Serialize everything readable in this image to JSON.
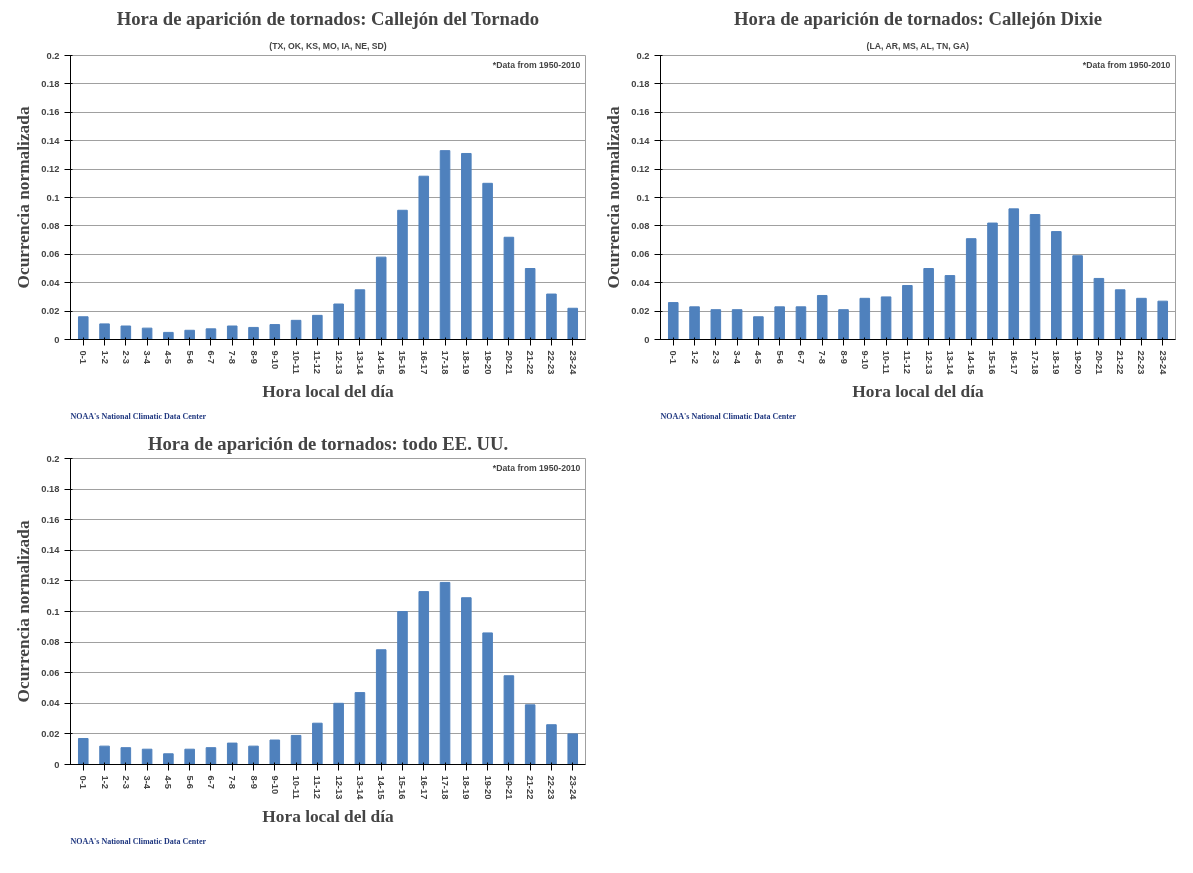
{
  "chart_data": [
    {
      "type": "bar",
      "title": "Hora de aparición de tornados: Callejón del Tornado",
      "subtitle": "(TX, OK, KS, MO, IA, NE, SD)",
      "xlabel": "Hora local del día",
      "ylabel": "Ocurrencia normalizada",
      "annotations": [
        "*Data from 1950-2010",
        "NOAA's National Climatic Data Center"
      ],
      "color": "#4f81bd",
      "grid": "y",
      "ylim": [
        0,
        0.2
      ],
      "yticks": [
        0,
        0.02,
        0.04,
        0.06,
        0.08,
        0.1,
        0.12,
        0.14,
        0.16,
        0.18,
        0.2
      ],
      "categories": [
        "0-1",
        "1-2",
        "2-3",
        "3-4",
        "4-5",
        "5-6",
        "6-7",
        "7-8",
        "8-9",
        "9-10",
        "10-11",
        "11-12",
        "12-13",
        "13-14",
        "14-15",
        "15-16",
        "16-17",
        "17-18",
        "18-19",
        "19-20",
        "20-21",
        "21-22",
        "22-23",
        "23-24"
      ],
      "values": [
        0.016,
        0.011,
        0.0095,
        0.008,
        0.005,
        0.0065,
        0.0075,
        0.0095,
        0.0085,
        0.0105,
        0.0135,
        0.017,
        0.025,
        0.035,
        0.058,
        0.091,
        0.115,
        0.133,
        0.131,
        0.11,
        0.072,
        0.05,
        0.032,
        0.022
      ]
    },
    {
      "type": "bar",
      "title": "Hora de aparición de tornados: Callejón Dixie",
      "subtitle": "(LA, AR, MS, AL, TN, GA)",
      "xlabel": "Hora local del día",
      "ylabel": "Ocurrencia normalizada",
      "annotations": [
        "*Data from 1950-2010",
        "NOAA's National Climatic Data Center"
      ],
      "color": "#4f81bd",
      "grid": "y",
      "ylim": [
        0,
        0.2
      ],
      "yticks": [
        0,
        0.02,
        0.04,
        0.06,
        0.08,
        0.1,
        0.12,
        0.14,
        0.16,
        0.18,
        0.2
      ],
      "categories": [
        "0-1",
        "1-2",
        "2-3",
        "3-4",
        "4-5",
        "5-6",
        "6-7",
        "7-8",
        "8-9",
        "9-10",
        "10-11",
        "11-12",
        "12-13",
        "13-14",
        "14-15",
        "15-16",
        "16-17",
        "17-18",
        "18-19",
        "19-20",
        "20-21",
        "21-22",
        "22-23",
        "23-24"
      ],
      "values": [
        0.026,
        0.023,
        0.021,
        0.021,
        0.016,
        0.023,
        0.023,
        0.031,
        0.021,
        0.029,
        0.03,
        0.038,
        0.05,
        0.045,
        0.071,
        0.082,
        0.092,
        0.088,
        0.076,
        0.059,
        0.043,
        0.035,
        0.029,
        0.027
      ]
    },
    {
      "type": "bar",
      "title": "Hora de aparición de tornados: todo EE. UU.",
      "xlabel": "Hora local del día",
      "ylabel": "Ocurrencia normalizada",
      "annotations": [
        "*Data from 1950-2010",
        "NOAA's National Climatic Data Center"
      ],
      "color": "#4f81bd",
      "grid": "y",
      "ylim": [
        0,
        0.2
      ],
      "yticks": [
        0,
        0.02,
        0.04,
        0.06,
        0.08,
        0.1,
        0.12,
        0.14,
        0.16,
        0.18,
        0.2
      ],
      "categories": [
        "0-1",
        "1-2",
        "2-3",
        "3-4",
        "4-5",
        "5-6",
        "6-7",
        "7-8",
        "8-9",
        "9-10",
        "10-11",
        "11-12",
        "12-13",
        "13-14",
        "14-15",
        "15-16",
        "16-17",
        "17-18",
        "18-19",
        "19-20",
        "20-21",
        "21-22",
        "22-23",
        "23-24"
      ],
      "values": [
        0.017,
        0.012,
        0.011,
        0.01,
        0.007,
        0.01,
        0.011,
        0.014,
        0.012,
        0.016,
        0.019,
        0.027,
        0.04,
        0.047,
        0.075,
        0.1,
        0.113,
        0.119,
        0.109,
        0.086,
        0.058,
        0.039,
        0.026,
        0.02
      ]
    }
  ]
}
